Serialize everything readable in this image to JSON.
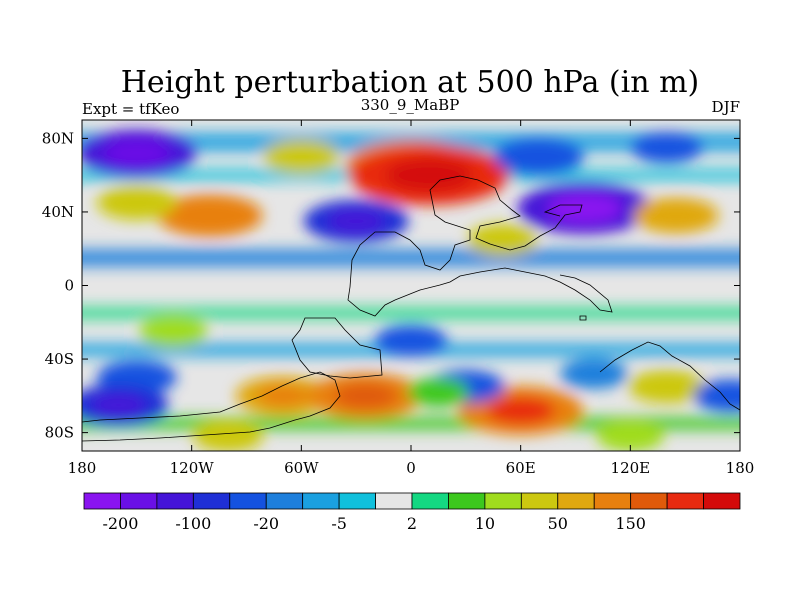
{
  "title": "Height perturbation at 500 hPa (in m)",
  "left_label": "Expt = tfKeo",
  "center_label": "330_9_MaBP",
  "right_label": "DJF",
  "chart_data": {
    "type": "heatmap",
    "title": "Height perturbation at 500 hPa (in m)",
    "xlabel": "",
    "ylabel": "",
    "xlim": [
      -180,
      180
    ],
    "ylim": [
      -90,
      90
    ],
    "x_ticks": [
      {
        "value": -180,
        "label": "180"
      },
      {
        "value": -120,
        "label": "120W"
      },
      {
        "value": -60,
        "label": "60W"
      },
      {
        "value": 0,
        "label": "0"
      },
      {
        "value": 60,
        "label": "60E"
      },
      {
        "value": 120,
        "label": "120E"
      },
      {
        "value": 180,
        "label": "180"
      }
    ],
    "y_ticks": [
      {
        "value": 80,
        "label": "80N"
      },
      {
        "value": 40,
        "label": "40N"
      },
      {
        "value": 0,
        "label": "0"
      },
      {
        "value": -40,
        "label": "40S"
      },
      {
        "value": -80,
        "label": "80S"
      }
    ],
    "colorbar": {
      "colors": [
        "#8a14f0",
        "#6a10e6",
        "#4414d8",
        "#1f2fd6",
        "#1452e0",
        "#1e7fdc",
        "#1aa0e0",
        "#10c0dc",
        "#e6e6e6",
        "#14d882",
        "#3cc81e",
        "#a0dc1e",
        "#ccc810",
        "#e0a810",
        "#e8800e",
        "#e05a0a",
        "#e82a10",
        "#d40a0a"
      ],
      "labels": [
        "-200",
        "-100",
        "-20",
        "-5",
        "2",
        "10",
        "50",
        "150"
      ]
    },
    "anomaly_blobs": [
      {
        "lon": -150,
        "lat": 72,
        "value": -120
      },
      {
        "lon": -110,
        "lat": 38,
        "value": 90
      },
      {
        "lon": -150,
        "lat": 45,
        "value": 40
      },
      {
        "lon": -60,
        "lat": 70,
        "value": 30
      },
      {
        "lon": 0,
        "lat": 65,
        "value": 140
      },
      {
        "lon": 10,
        "lat": 60,
        "value": 200
      },
      {
        "lon": 70,
        "lat": 70,
        "value": -60
      },
      {
        "lon": 140,
        "lat": 75,
        "value": -25
      },
      {
        "lon": 95,
        "lat": 42,
        "value": -150
      },
      {
        "lon": 145,
        "lat": 38,
        "value": 50
      },
      {
        "lon": -30,
        "lat": 35,
        "value": -90
      },
      {
        "lon": 50,
        "lat": 25,
        "value": 20
      },
      {
        "lon": -130,
        "lat": -25,
        "value": 18
      },
      {
        "lon": -150,
        "lat": -50,
        "value": -40
      },
      {
        "lon": -160,
        "lat": -65,
        "value": -80
      },
      {
        "lon": 0,
        "lat": -30,
        "value": -25
      },
      {
        "lon": -70,
        "lat": -60,
        "value": 70
      },
      {
        "lon": -25,
        "lat": -60,
        "value": 110
      },
      {
        "lon": 60,
        "lat": -68,
        "value": 130
      },
      {
        "lon": 100,
        "lat": -48,
        "value": -15
      },
      {
        "lon": 140,
        "lat": -55,
        "value": 35
      },
      {
        "lon": 175,
        "lat": -60,
        "value": -30
      },
      {
        "lon": 30,
        "lat": -55,
        "value": -35
      },
      {
        "lon": 15,
        "lat": -58,
        "value": 5
      },
      {
        "lon": -100,
        "lat": -82,
        "value": 20
      },
      {
        "lon": 120,
        "lat": -82,
        "value": 15
      }
    ]
  }
}
